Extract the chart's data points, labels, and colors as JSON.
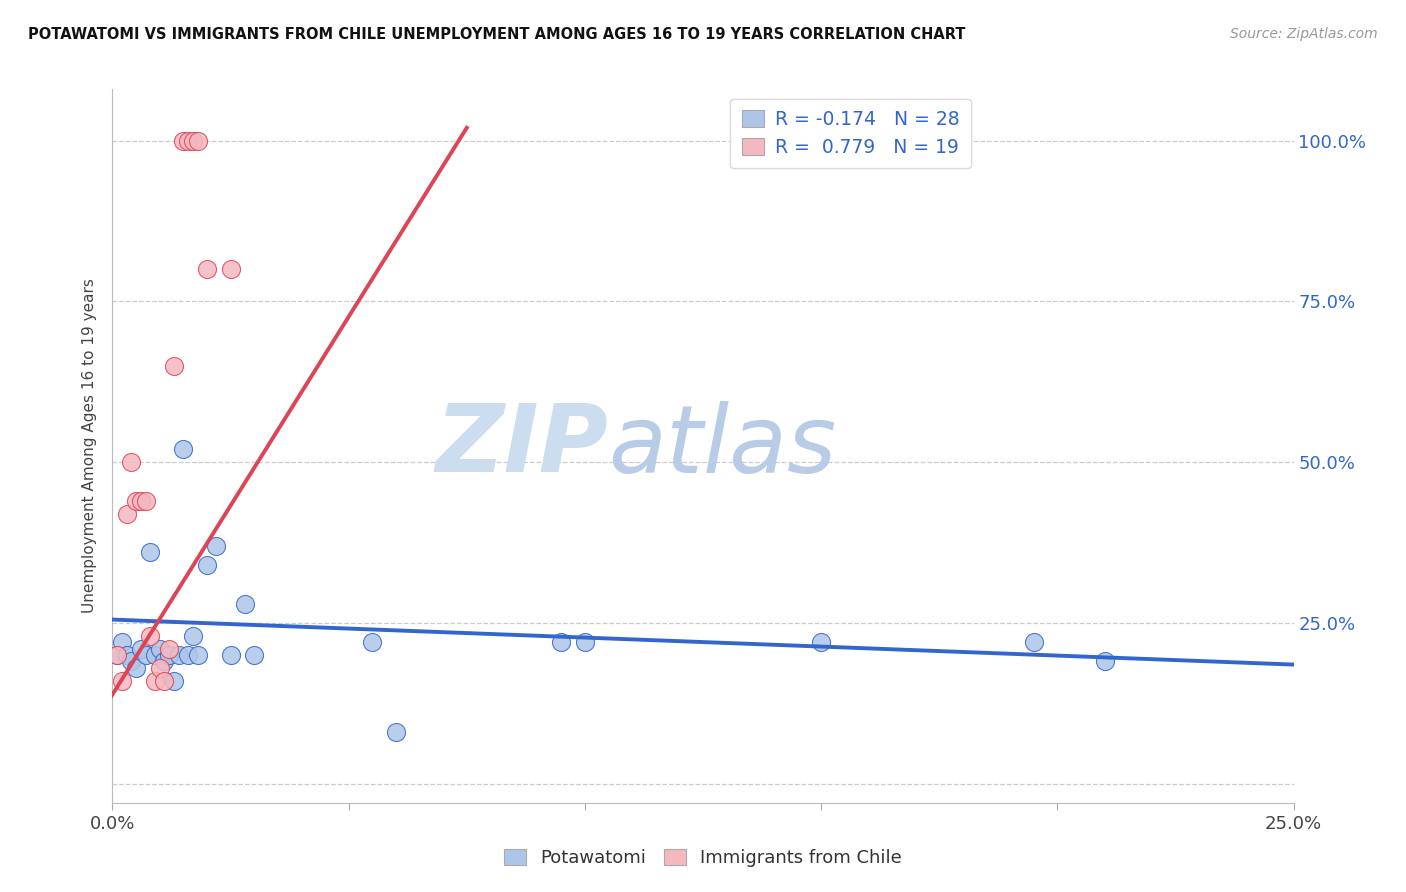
{
  "title": "POTAWATOMI VS IMMIGRANTS FROM CHILE UNEMPLOYMENT AMONG AGES 16 TO 19 YEARS CORRELATION CHART",
  "source": "Source: ZipAtlas.com",
  "ylabel": "Unemployment Among Ages 16 to 19 years",
  "xlim": [
    0.0,
    0.25
  ],
  "ylim": [
    -0.03,
    1.08
  ],
  "xticks": [
    0.0,
    0.05,
    0.1,
    0.15,
    0.2,
    0.25
  ],
  "yticks": [
    0.0,
    0.25,
    0.5,
    0.75,
    1.0
  ],
  "color_blue": "#adc6e8",
  "color_pink": "#f5b8c0",
  "color_blue_line": "#3366cc",
  "color_pink_line": "#dd4455",
  "color_blue_text": "#3366cc",
  "watermark_zip": "ZIP",
  "watermark_atlas": "atlas",
  "potawatomi_x": [
    0.001,
    0.002,
    0.003,
    0.004,
    0.005,
    0.006,
    0.007,
    0.008,
    0.009,
    0.01,
    0.011,
    0.012,
    0.013,
    0.014,
    0.015,
    0.016,
    0.017,
    0.018,
    0.02,
    0.022,
    0.025,
    0.028,
    0.03,
    0.055,
    0.06,
    0.095,
    0.1,
    0.15,
    0.195,
    0.21
  ],
  "potawatomi_y": [
    0.2,
    0.22,
    0.2,
    0.19,
    0.18,
    0.21,
    0.2,
    0.36,
    0.2,
    0.21,
    0.19,
    0.2,
    0.16,
    0.2,
    0.52,
    0.2,
    0.23,
    0.2,
    0.34,
    0.37,
    0.2,
    0.28,
    0.2,
    0.22,
    0.08,
    0.22,
    0.22,
    0.22,
    0.22,
    0.19
  ],
  "chile_x": [
    0.001,
    0.002,
    0.003,
    0.004,
    0.005,
    0.006,
    0.007,
    0.008,
    0.009,
    0.01,
    0.011,
    0.012,
    0.013,
    0.015,
    0.016,
    0.017,
    0.018,
    0.02,
    0.025
  ],
  "chile_y": [
    0.2,
    0.16,
    0.42,
    0.5,
    0.44,
    0.44,
    0.44,
    0.23,
    0.16,
    0.18,
    0.16,
    0.21,
    0.65,
    1.0,
    1.0,
    1.0,
    1.0,
    0.8,
    0.8
  ],
  "blue_trend_x0": 0.0,
  "blue_trend_x1": 0.25,
  "blue_trend_y0": 0.255,
  "blue_trend_y1": 0.185,
  "pink_trend_x0": -0.002,
  "pink_trend_x1": 0.075,
  "pink_trend_y0": 0.115,
  "pink_trend_y1": 1.02
}
